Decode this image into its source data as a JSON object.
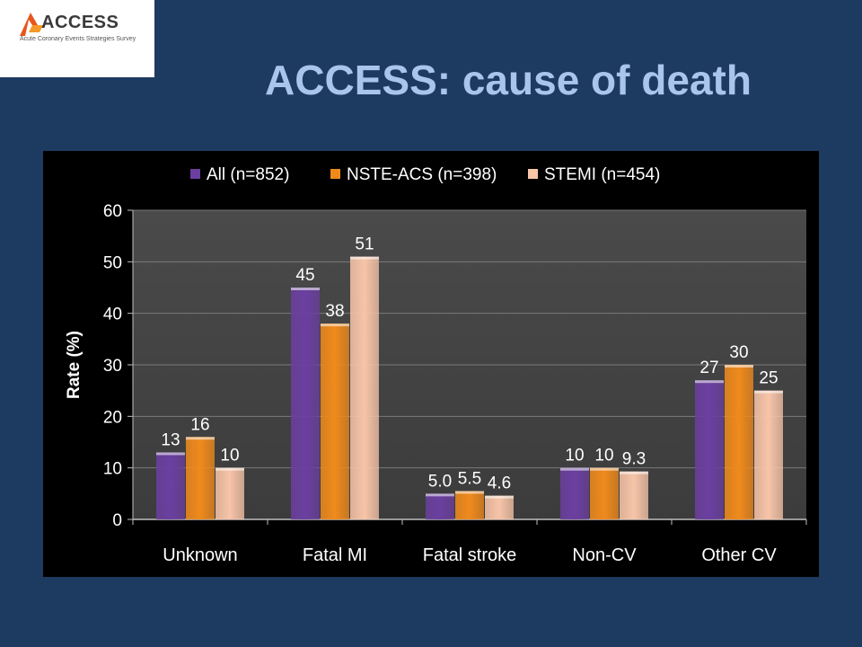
{
  "logo": {
    "name": "ACCESS",
    "tagline": "Acute Coronary Events Strategies Survey"
  },
  "slide": {
    "title": "ACCESS: cause of death"
  },
  "chart_data": {
    "type": "bar",
    "title": "",
    "xlabel": "",
    "ylabel": "Rate (%)",
    "ylim": [
      0,
      60
    ],
    "yticks": [
      0,
      10,
      20,
      30,
      40,
      50,
      60
    ],
    "grid": true,
    "legend_position": "top",
    "categories": [
      "Unknown",
      "Fatal MI",
      "Fatal stroke",
      "Non-CV",
      "Other CV"
    ],
    "series": [
      {
        "name": "All (n=852)",
        "values": [
          13,
          45,
          5.0,
          10,
          27
        ],
        "labels": [
          "13",
          "45",
          "5.0",
          "10",
          "27"
        ],
        "color": "#6b3fa0"
      },
      {
        "name": "NSTE-ACS (n=398)",
        "values": [
          16,
          38,
          5.5,
          10,
          30
        ],
        "labels": [
          "16",
          "38",
          "5.5",
          "10",
          "30"
        ],
        "color": "#f08a1c"
      },
      {
        "name": "STEMI (n=454)",
        "values": [
          10,
          51,
          4.6,
          9.3,
          25
        ],
        "labels": [
          "10",
          "51",
          "4.6",
          "9.3",
          "25"
        ],
        "color": "#f7c4a8"
      }
    ]
  }
}
